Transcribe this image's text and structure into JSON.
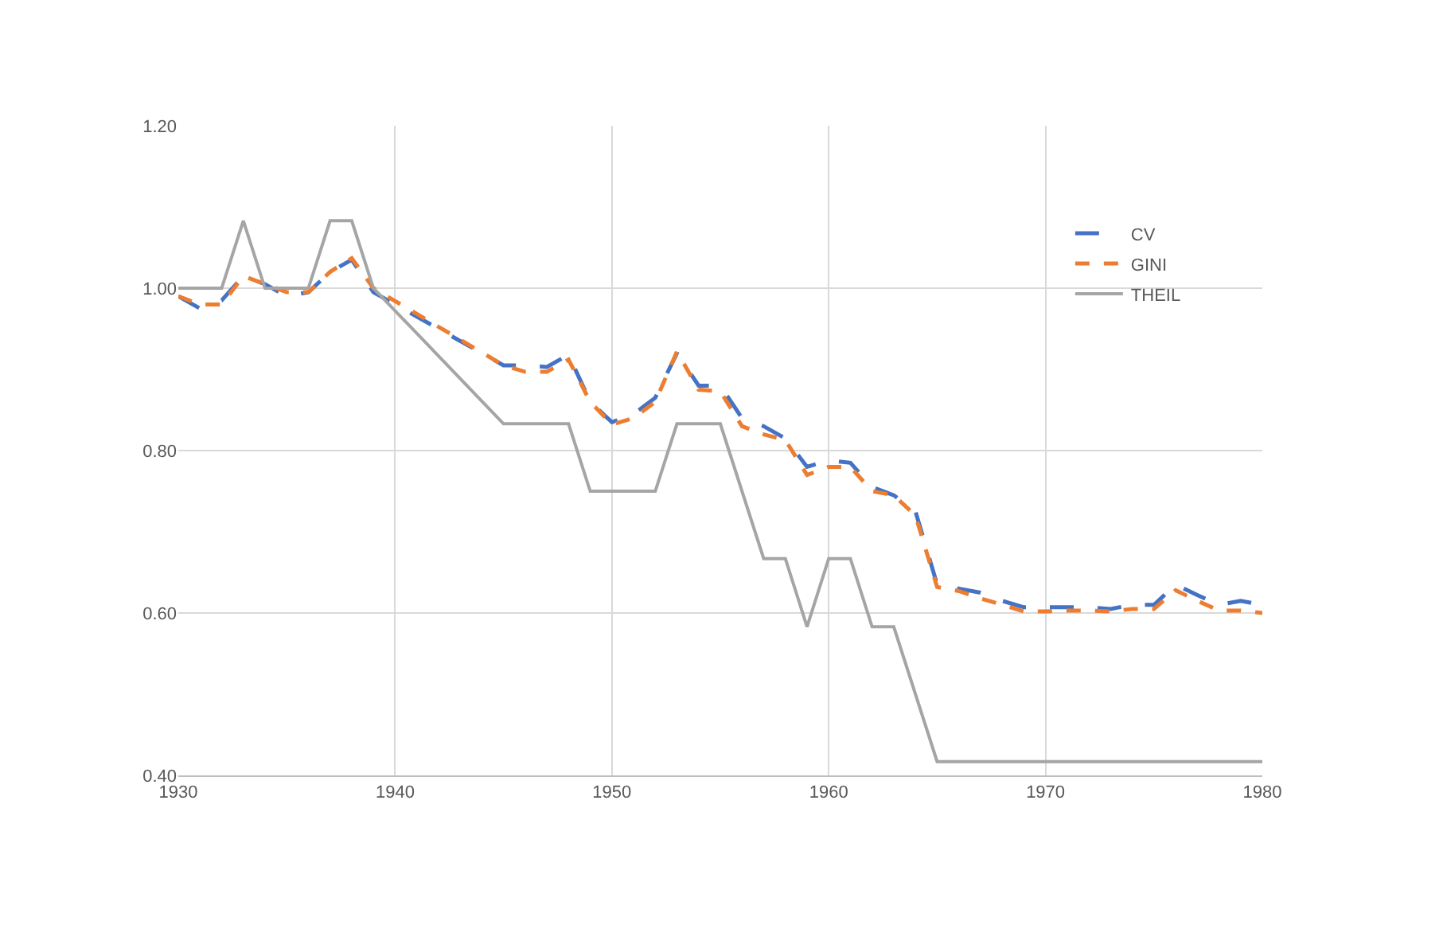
{
  "chart_data": {
    "type": "line",
    "xlim": [
      1930,
      1980
    ],
    "xticks": [
      1930,
      1940,
      1950,
      1960,
      1970,
      1980
    ],
    "ylim": [
      0.4,
      1.2
    ],
    "yticks": [
      {
        "value": 0.4,
        "label": "0.40"
      },
      {
        "value": 0.6,
        "label": "0.60"
      },
      {
        "value": 0.8,
        "label": "0.80"
      },
      {
        "value": 1.0,
        "label": "1.00"
      },
      {
        "value": 1.2,
        "label": "1.20"
      }
    ],
    "grid": true,
    "legend": "top right",
    "marker": "none",
    "series": [
      {
        "name": "CV",
        "color": "#4472c4",
        "line_style": "dashed",
        "x": [
          1930,
          1931,
          1932,
          1933,
          1934,
          1935,
          1936,
          1937,
          1938,
          1939,
          1945,
          1946,
          1947,
          1948,
          1949,
          1950,
          1951,
          1952,
          1953,
          1954,
          1955,
          1956,
          1957,
          1958,
          1959,
          1960,
          1961,
          1962,
          1963,
          1964,
          1965,
          1966,
          1967,
          1968,
          1969,
          1970,
          1971,
          1972,
          1973,
          1974,
          1975,
          1976,
          1977,
          1978,
          1979,
          1980
        ],
        "values": [
          0.99,
          0.975,
          0.985,
          1.015,
          1.005,
          0.99,
          0.995,
          1.02,
          1.035,
          0.995,
          0.905,
          0.905,
          0.903,
          0.918,
          0.86,
          0.835,
          0.845,
          0.865,
          0.92,
          0.88,
          0.88,
          0.84,
          0.83,
          0.815,
          0.78,
          0.788,
          0.785,
          0.755,
          0.745,
          0.725,
          0.635,
          0.63,
          0.625,
          0.615,
          0.607,
          0.607,
          0.607,
          0.607,
          0.605,
          0.61,
          0.61,
          0.635,
          0.622,
          0.61,
          0.615,
          0.61
        ]
      },
      {
        "name": "GINI",
        "color": "#ed7d31",
        "line_style": "dashed",
        "x": [
          1930,
          1931,
          1932,
          1933,
          1934,
          1935,
          1936,
          1937,
          1938,
          1939,
          1945,
          1946,
          1947,
          1948,
          1949,
          1950,
          1951,
          1952,
          1953,
          1954,
          1955,
          1956,
          1957,
          1958,
          1959,
          1960,
          1961,
          1962,
          1963,
          1964,
          1965,
          1966,
          1967,
          1968,
          1969,
          1970,
          1971,
          1972,
          1973,
          1974,
          1975,
          1976,
          1977,
          1978,
          1979,
          1980
        ],
        "values": [
          0.99,
          0.98,
          0.98,
          1.015,
          1.005,
          0.995,
          0.995,
          1.02,
          1.037,
          1.0,
          0.905,
          0.897,
          0.897,
          0.912,
          0.86,
          0.832,
          0.84,
          0.86,
          0.922,
          0.875,
          0.873,
          0.83,
          0.82,
          0.813,
          0.77,
          0.78,
          0.78,
          0.75,
          0.745,
          0.72,
          0.632,
          0.627,
          0.618,
          0.61,
          0.602,
          0.602,
          0.603,
          0.603,
          0.602,
          0.605,
          0.605,
          0.628,
          0.615,
          0.603,
          0.603,
          0.6
        ]
      },
      {
        "name": "THEIL",
        "color": "#a5a5a5",
        "line_style": "solid",
        "x": [
          1930,
          1932,
          1933,
          1934,
          1936,
          1937,
          1938,
          1939,
          1945,
          1948,
          1949,
          1952,
          1953,
          1955,
          1957,
          1958,
          1959,
          1960,
          1961,
          1962,
          1963,
          1965,
          1980
        ],
        "values": [
          1.0,
          1.0,
          1.083,
          1.0,
          1.0,
          1.083,
          1.083,
          1.0,
          0.833,
          0.833,
          0.75,
          0.75,
          0.833,
          0.833,
          0.667,
          0.667,
          0.583,
          0.667,
          0.667,
          0.583,
          0.583,
          0.417,
          0.417
        ]
      }
    ]
  }
}
